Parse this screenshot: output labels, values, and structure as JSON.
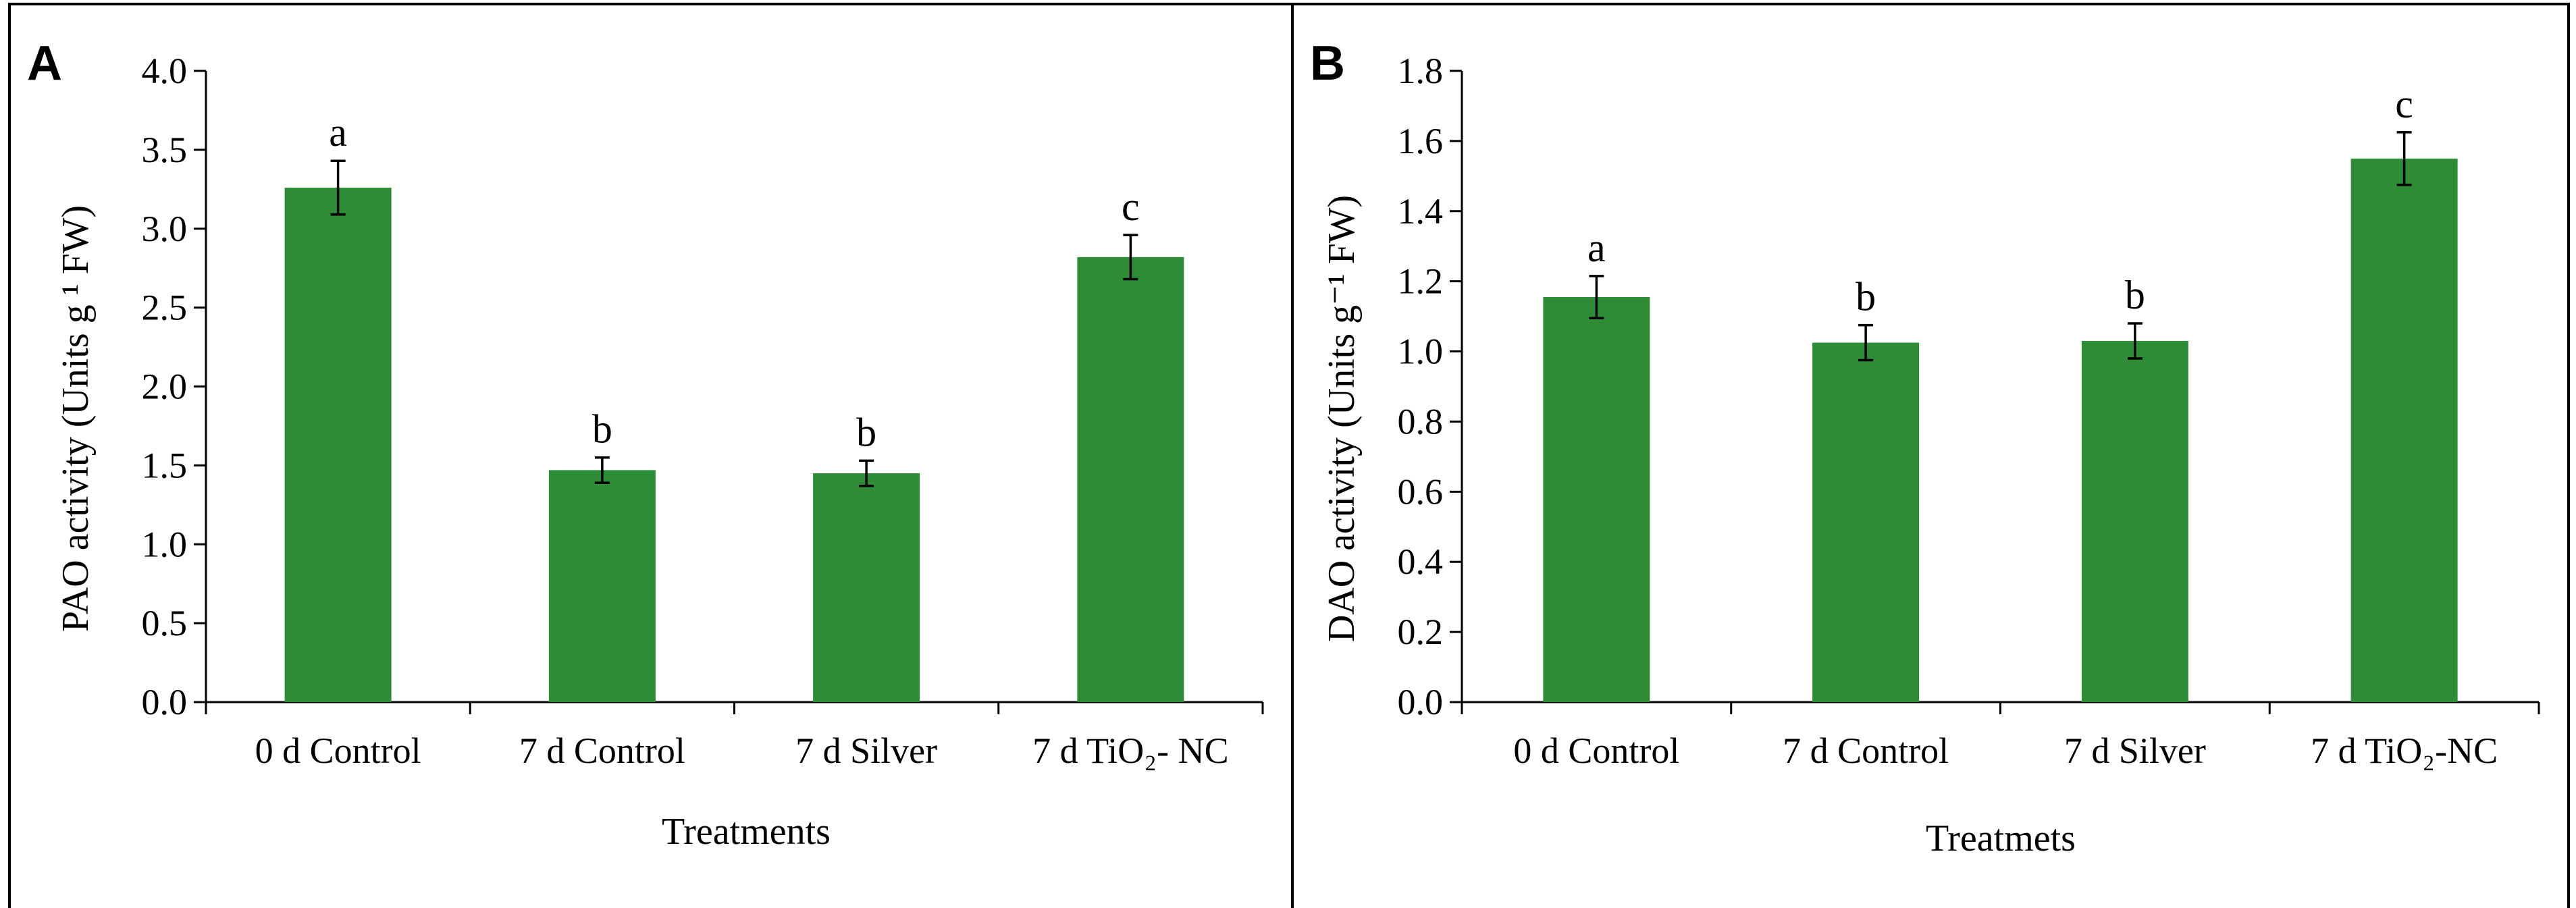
{
  "colors": {
    "bar": "#2e8b36",
    "axis": "#000000",
    "background": "#ffffff"
  },
  "chart_data": [
    {
      "type": "bar",
      "panel": "A",
      "title": "",
      "categories": [
        "0 d Control",
        "7 d Control",
        "7 d Silver",
        "7 d TiO₂- NC"
      ],
      "values": [
        3.26,
        1.47,
        1.45,
        2.82
      ],
      "errors": [
        0.17,
        0.08,
        0.08,
        0.14
      ],
      "significance": [
        "a",
        "b",
        "b",
        "c"
      ],
      "xlabel": "Treatments",
      "ylabel": "PAO activity (Units g ¹ FW)",
      "ylim": [
        0,
        4.0
      ],
      "yticks": [
        "0.0",
        "0.5",
        "1.0",
        "1.5",
        "2.0",
        "2.5",
        "3.0",
        "3.5",
        "4.0"
      ],
      "grid": false,
      "legend": "none"
    },
    {
      "type": "bar",
      "panel": "B",
      "title": "",
      "categories": [
        "0 d Control",
        "7 d Control",
        "7 d Silver",
        "7 d TiO₂-NC"
      ],
      "values": [
        1.155,
        1.025,
        1.03,
        1.55
      ],
      "errors": [
        0.06,
        0.05,
        0.05,
        0.075
      ],
      "significance": [
        "a",
        "b",
        "b",
        "c"
      ],
      "xlabel": "Treatmets",
      "ylabel": "DAO activity (Units g⁻¹ FW)",
      "ylim": [
        0,
        1.8
      ],
      "yticks": [
        "0.0",
        "0.2",
        "0.4",
        "0.6",
        "0.8",
        "1.0",
        "1.2",
        "1.4",
        "1.6",
        "1.8"
      ],
      "grid": false,
      "legend": "none"
    }
  ]
}
